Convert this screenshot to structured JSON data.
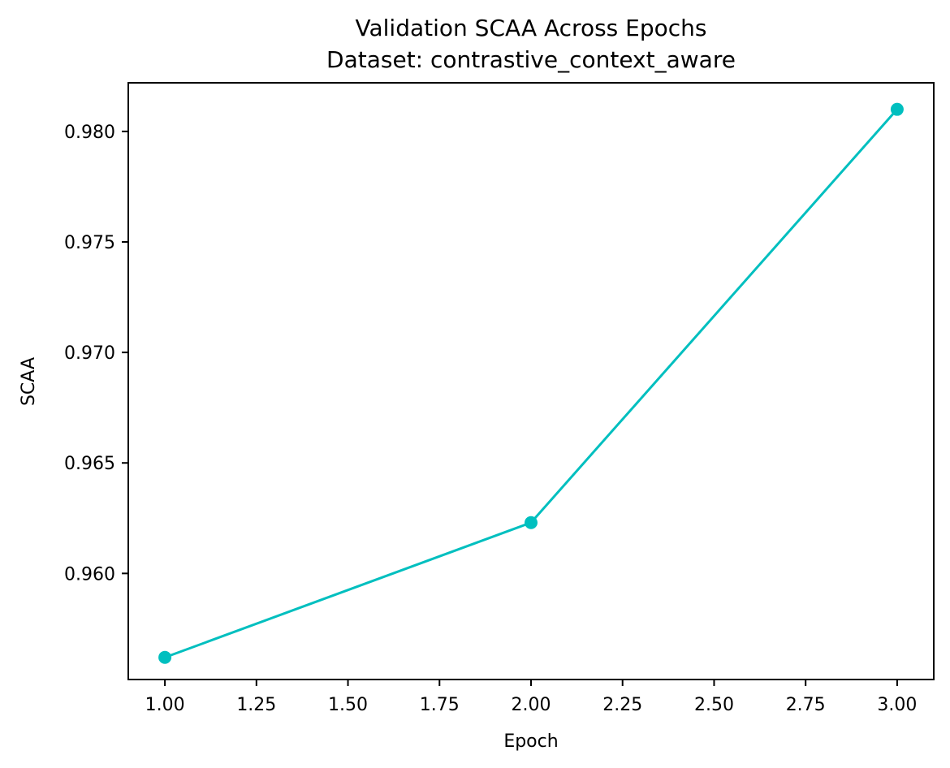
{
  "chart_data": {
    "type": "line",
    "title": "Validation SCAA Across Epochs",
    "subtitle": "Dataset: contrastive_context_aware",
    "xlabel": "Epoch",
    "ylabel": "SCAA",
    "x": [
      1.0,
      2.0,
      3.0
    ],
    "series": [
      {
        "values": [
          0.9562,
          0.9623,
          0.981
        ],
        "color": "#00bfbf",
        "marker": "circle"
      }
    ],
    "xlim": [
      0.9,
      3.1
    ],
    "ylim": [
      0.9552,
      0.9822
    ],
    "xticks": [
      1.0,
      1.25,
      1.5,
      1.75,
      2.0,
      2.25,
      2.5,
      2.75,
      3.0
    ],
    "xtick_labels": [
      "1.00",
      "1.25",
      "1.50",
      "1.75",
      "2.00",
      "2.25",
      "2.50",
      "2.75",
      "3.00"
    ],
    "yticks": [
      0.96,
      0.965,
      0.97,
      0.975,
      0.98
    ],
    "ytick_labels": [
      "0.960",
      "0.965",
      "0.970",
      "0.975",
      "0.980"
    ],
    "grid": false,
    "legend": "none"
  }
}
